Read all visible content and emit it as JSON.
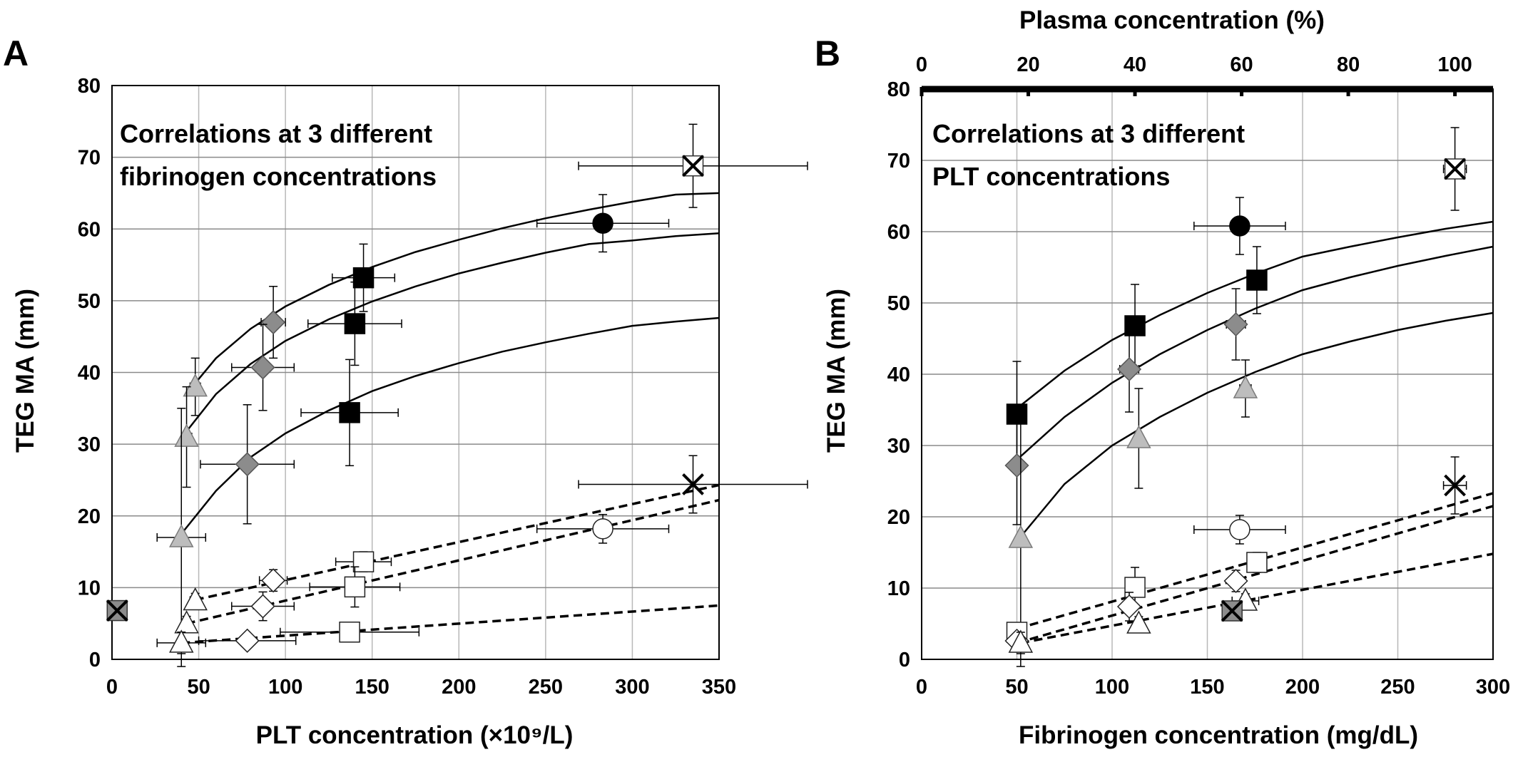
{
  "chart_data": [
    {
      "type": "scatter",
      "panel_label": "A",
      "annotation": [
        "Correlations  at 3 different",
        "fibrinogen concentrations"
      ],
      "xlabel": "PLT concentration (×10⁹/L)",
      "ylabel": "TEG MA (mm)",
      "xlim": [
        0,
        350
      ],
      "ylim": [
        0,
        80
      ],
      "xticks": [
        0,
        50,
        100,
        150,
        200,
        250,
        300,
        350
      ],
      "yticks": [
        0,
        10,
        20,
        30,
        40,
        50,
        60,
        70,
        80
      ],
      "grid": true,
      "points": [
        {
          "marker": "square-x",
          "fill": "#8c8c8c",
          "x": 3,
          "y": 6.8
        },
        {
          "marker": "triangle",
          "fill": "#bdbdbd",
          "x": 48,
          "y": 38,
          "xerr": 3,
          "yerr": 4
        },
        {
          "marker": "triangle",
          "fill": "#bdbdbd",
          "x": 43,
          "y": 31,
          "xerr": 3,
          "yerr": 7
        },
        {
          "marker": "triangle",
          "fill": "#bdbdbd",
          "x": 40,
          "y": 17,
          "xerr": 14,
          "yerr": 18
        },
        {
          "marker": "diamond",
          "fill": "#8c8c8c",
          "x": 93,
          "y": 47,
          "xerr": 7,
          "yerr": 5
        },
        {
          "marker": "diamond",
          "fill": "#8c8c8c",
          "x": 87,
          "y": 40.7,
          "xerr": 18,
          "yerr": 6
        },
        {
          "marker": "diamond",
          "fill": "#8c8c8c",
          "x": 78,
          "y": 27.2,
          "xerr": 27,
          "yerr": 8.3
        },
        {
          "marker": "square",
          "fill": "#000000",
          "x": 145,
          "y": 53.2,
          "xerr": 18,
          "yerr": 4.7
        },
        {
          "marker": "square",
          "fill": "#000000",
          "x": 140,
          "y": 46.8,
          "xerr": 27,
          "yerr": 5.8
        },
        {
          "marker": "square",
          "fill": "#000000",
          "x": 137,
          "y": 34.4,
          "xerr": 28,
          "yerr": 7.4
        },
        {
          "marker": "circle",
          "fill": "#000000",
          "x": 283,
          "y": 60.8,
          "xerr": 38,
          "yerr": 4
        },
        {
          "marker": "square-x",
          "fill": "#ffffff",
          "x": 335,
          "y": 68.8,
          "xerr": 66,
          "yerr": 5.8
        },
        {
          "marker": "triangle",
          "fill": "#ffffff",
          "x": 48,
          "y": 8.2,
          "xerr": 3,
          "yerr": 1
        },
        {
          "marker": "triangle",
          "fill": "#ffffff",
          "x": 43,
          "y": 5,
          "xerr": 2,
          "yerr": 1
        },
        {
          "marker": "triangle",
          "fill": "#ffffff",
          "x": 40,
          "y": 2.3,
          "xerr": 14,
          "yerr": 1.5
        },
        {
          "marker": "diamond",
          "fill": "#ffffff",
          "x": 93,
          "y": 11,
          "xerr": 8,
          "yerr": 1.5
        },
        {
          "marker": "diamond",
          "fill": "#ffffff",
          "x": 87,
          "y": 7.4,
          "xerr": 18,
          "yerr": 2
        },
        {
          "marker": "diamond",
          "fill": "#ffffff",
          "x": 78,
          "y": 2.6,
          "xerr": 28,
          "yerr": 1
        },
        {
          "marker": "square",
          "fill": "#ffffff",
          "x": 145,
          "y": 13.6,
          "xerr": 16,
          "yerr": 1.4
        },
        {
          "marker": "square",
          "fill": "#ffffff",
          "x": 140,
          "y": 10.1,
          "xerr": 26,
          "yerr": 2.8
        },
        {
          "marker": "square",
          "fill": "#ffffff",
          "x": 137,
          "y": 3.8,
          "xerr": 40,
          "yerr": 1
        },
        {
          "marker": "circle",
          "fill": "#ffffff",
          "x": 283,
          "y": 18.2,
          "xerr": 38,
          "yerr": 2
        },
        {
          "marker": "x",
          "fill": "#ffffff",
          "x": 335,
          "y": 24.4,
          "xerr": 66,
          "yerr": 4
        }
      ],
      "curves": [
        {
          "style": "solid",
          "x": [
            48,
            60,
            80,
            100,
            125,
            150,
            175,
            200,
            225,
            250,
            275,
            300,
            325,
            350
          ],
          "y": [
            38.5,
            42,
            46.1,
            49.2,
            52.2,
            54.7,
            56.8,
            58.5,
            60.1,
            61.5,
            62.7,
            63.8,
            64.8,
            65.0
          ]
        },
        {
          "style": "solid",
          "x": [
            43,
            60,
            80,
            100,
            125,
            150,
            175,
            200,
            225,
            250,
            275,
            300,
            325,
            350
          ],
          "y": [
            31.8,
            37,
            41.2,
            44.4,
            47.4,
            49.9,
            52.0,
            53.8,
            55.3,
            56.7,
            57.9,
            58.4,
            59.0,
            59.4
          ]
        },
        {
          "style": "solid",
          "x": [
            40,
            60,
            80,
            100,
            125,
            150,
            175,
            200,
            225,
            250,
            275,
            300,
            325,
            350
          ],
          "y": [
            17.5,
            23.5,
            28.2,
            31.5,
            34.7,
            37.4,
            39.5,
            41.3,
            42.9,
            44.2,
            45.4,
            46.5,
            47.1,
            47.6
          ]
        },
        {
          "style": "dashed",
          "x": [
            48,
            350
          ],
          "y": [
            8.3,
            24.3
          ]
        },
        {
          "style": "dashed",
          "x": [
            43,
            350
          ],
          "y": [
            5.0,
            22.2
          ]
        },
        {
          "style": "dashed",
          "x": [
            40,
            350
          ],
          "y": [
            2.3,
            7.5
          ]
        }
      ]
    },
    {
      "type": "scatter",
      "panel_label": "B",
      "annotation": [
        "Correlations at 3 different",
        "PLT concentrations"
      ],
      "xlabel": "Fibrinogen concentration (mg/dL)",
      "ylabel": "TEG MA (mm)",
      "x2label": "Plasma concentration (%)",
      "xlim": [
        0,
        300
      ],
      "ylim": [
        0,
        80
      ],
      "xticks": [
        0,
        50,
        100,
        150,
        200,
        250,
        300
      ],
      "yticks": [
        0,
        10,
        20,
        30,
        40,
        50,
        60,
        70,
        80
      ],
      "x2ticks": [
        0,
        20,
        40,
        60,
        80,
        100
      ],
      "x2_max_at_x": 280,
      "grid": true,
      "points": [
        {
          "marker": "square",
          "fill": "#000000",
          "x": 50,
          "y": 34.4,
          "yerr": 7.4
        },
        {
          "marker": "square",
          "fill": "#000000",
          "x": 112,
          "y": 46.8,
          "xerr": 5,
          "yerr": 5.8
        },
        {
          "marker": "square",
          "fill": "#000000",
          "x": 176,
          "y": 53.2,
          "xerr": 5,
          "yerr": 4.7
        },
        {
          "marker": "circle",
          "fill": "#000000",
          "x": 167,
          "y": 60.8,
          "xerr": 24,
          "yerr": 4
        },
        {
          "marker": "square-x",
          "fill": "#ffffff",
          "x": 280,
          "y": 68.8,
          "xerr": 6,
          "yerr": 5.8
        },
        {
          "marker": "diamond",
          "fill": "#8c8c8c",
          "x": 50,
          "y": 27.2,
          "yerr": 8.3
        },
        {
          "marker": "diamond",
          "fill": "#8c8c8c",
          "x": 109,
          "y": 40.7,
          "xerr": 5,
          "yerr": 6
        },
        {
          "marker": "diamond",
          "fill": "#8c8c8c",
          "x": 165,
          "y": 47,
          "xerr": 5,
          "yerr": 5
        },
        {
          "marker": "triangle",
          "fill": "#bdbdbd",
          "x": 52,
          "y": 17,
          "yerr": 18
        },
        {
          "marker": "triangle",
          "fill": "#bdbdbd",
          "x": 114,
          "y": 31,
          "yerr": 7
        },
        {
          "marker": "triangle",
          "fill": "#bdbdbd",
          "x": 170,
          "y": 38,
          "xerr": 3,
          "yerr": 4
        },
        {
          "marker": "circle",
          "fill": "#ffffff",
          "x": 167,
          "y": 18.2,
          "xerr": 24,
          "yerr": 2
        },
        {
          "marker": "x",
          "fill": "#ffffff",
          "x": 280,
          "y": 24.4,
          "xerr": 6,
          "yerr": 4
        },
        {
          "marker": "square",
          "fill": "#ffffff",
          "x": 50,
          "y": 3.8,
          "yerr": 1
        },
        {
          "marker": "square",
          "fill": "#ffffff",
          "x": 112,
          "y": 10.1,
          "yerr": 2.8
        },
        {
          "marker": "square",
          "fill": "#ffffff",
          "x": 176,
          "y": 13.6,
          "xerr": 4,
          "yerr": 1.4
        },
        {
          "marker": "diamond",
          "fill": "#ffffff",
          "x": 50,
          "y": 2.6,
          "yerr": 1
        },
        {
          "marker": "diamond",
          "fill": "#ffffff",
          "x": 109,
          "y": 7.4,
          "yerr": 2
        },
        {
          "marker": "diamond",
          "fill": "#ffffff",
          "x": 165,
          "y": 11,
          "yerr": 1.5
        },
        {
          "marker": "triangle",
          "fill": "#ffffff",
          "x": 52,
          "y": 2.3,
          "yerr": 1.5
        },
        {
          "marker": "triangle",
          "fill": "#ffffff",
          "x": 114,
          "y": 5,
          "yerr": 1
        },
        {
          "marker": "triangle",
          "fill": "#ffffff",
          "x": 170,
          "y": 8.2,
          "xerr": 7,
          "yerr": 1
        },
        {
          "marker": "square-x",
          "fill": "#8c8c8c",
          "x": 163,
          "y": 6.8
        }
      ],
      "curves": [
        {
          "style": "solid",
          "x": [
            50,
            75,
            100,
            125,
            150,
            175,
            200,
            225,
            250,
            275,
            300
          ],
          "y": [
            35.2,
            40.5,
            44.8,
            48.3,
            51.4,
            54.1,
            56.5,
            57.9,
            59.2,
            60.4,
            61.4
          ]
        },
        {
          "style": "solid",
          "x": [
            50,
            75,
            100,
            125,
            150,
            175,
            200,
            225,
            250,
            275,
            300
          ],
          "y": [
            28.0,
            34.0,
            38.8,
            42.8,
            46.2,
            49.2,
            51.8,
            53.6,
            55.2,
            56.6,
            57.9
          ]
        },
        {
          "style": "solid",
          "x": [
            52,
            75,
            100,
            125,
            150,
            175,
            200,
            225,
            250,
            275,
            300
          ],
          "y": [
            17.2,
            24.6,
            30.0,
            34.0,
            37.4,
            40.3,
            42.8,
            44.6,
            46.2,
            47.5,
            48.6
          ]
        },
        {
          "style": "dashed",
          "x": [
            50,
            300
          ],
          "y": [
            4.3,
            23.3
          ]
        },
        {
          "style": "dashed",
          "x": [
            50,
            300
          ],
          "y": [
            2.3,
            21.5
          ]
        },
        {
          "style": "dashed",
          "x": [
            52,
            300
          ],
          "y": [
            2.3,
            14.8
          ]
        }
      ]
    }
  ]
}
